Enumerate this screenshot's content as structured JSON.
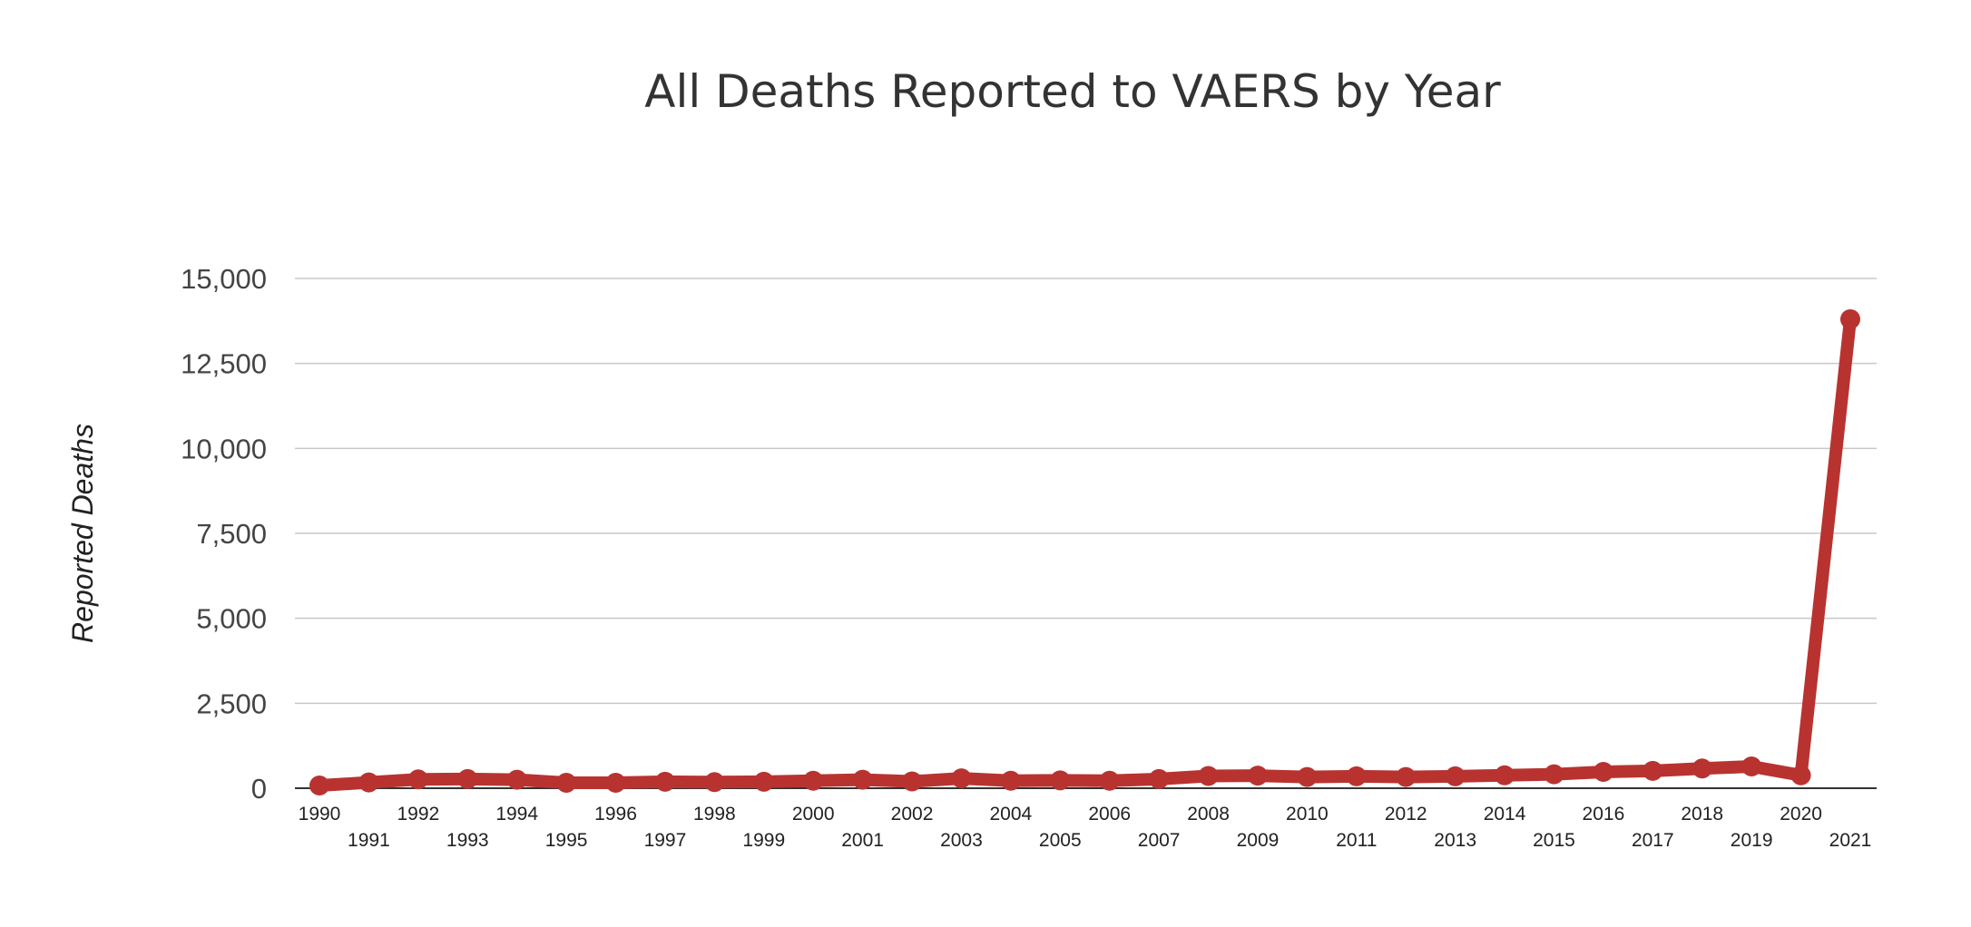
{
  "chart_data": {
    "type": "line",
    "title": "All Deaths Reported to VAERS by Year",
    "xlabel": "",
    "ylabel": "Reported Deaths",
    "x": [
      "1990",
      "1991",
      "1992",
      "1993",
      "1994",
      "1995",
      "1996",
      "1997",
      "1998",
      "1999",
      "2000",
      "2001",
      "2002",
      "2003",
      "2004",
      "2005",
      "2006",
      "2007",
      "2008",
      "2009",
      "2010",
      "2011",
      "2012",
      "2013",
      "2014",
      "2015",
      "2016",
      "2017",
      "2018",
      "2019",
      "2020",
      "2021"
    ],
    "series": [
      {
        "values": [
          80,
          170,
          260,
          270,
          250,
          160,
          160,
          190,
          180,
          190,
          220,
          250,
          200,
          290,
          220,
          230,
          220,
          270,
          360,
          370,
          330,
          350,
          330,
          350,
          380,
          410,
          480,
          510,
          580,
          640,
          380,
          13800
        ],
        "color": "#b83330"
      }
    ],
    "yticks": [
      "0",
      "2,500",
      "5,000",
      "7,500",
      "10,000",
      "12,500",
      "15,000"
    ],
    "ylim": [
      0,
      15000
    ],
    "grid": true,
    "legend": "none",
    "colors": {
      "line": "#b83330",
      "grid": "#c8c8c8",
      "axis": "#333333",
      "title": "#333333"
    }
  }
}
